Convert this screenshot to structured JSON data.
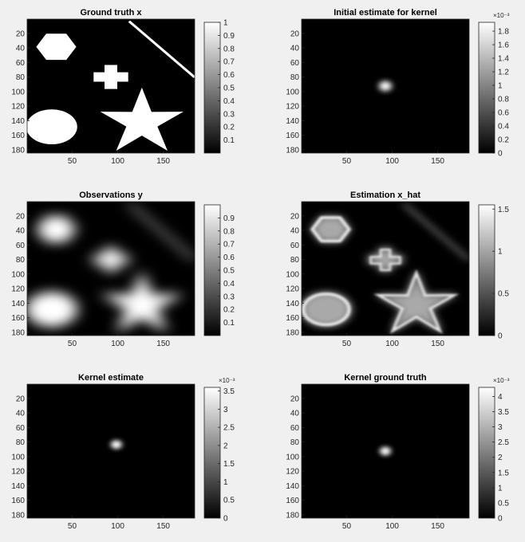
{
  "panels": [
    {
      "title": "Ground truth x",
      "image": "ground-truth",
      "x_ticks": [
        "50",
        "100",
        "150"
      ],
      "x_tick_values": [
        50,
        100,
        150
      ],
      "y_ticks": [
        "20",
        "40",
        "60",
        "80",
        "100",
        "120",
        "140",
        "160",
        "180"
      ],
      "y_tick_values": [
        20,
        40,
        60,
        80,
        100,
        120,
        140,
        160,
        180
      ],
      "colorbar": {
        "ticks": [
          "0.1",
          "0.2",
          "0.3",
          "0.4",
          "0.5",
          "0.6",
          "0.7",
          "0.8",
          "0.9",
          "1"
        ],
        "tick_values": [
          0.1,
          0.2,
          0.3,
          0.4,
          0.5,
          0.6,
          0.7,
          0.8,
          0.9,
          1.0
        ],
        "range": [
          0,
          1
        ],
        "exponent": ""
      }
    },
    {
      "title": "Initial estimate for kernel",
      "image": "kernel-initial",
      "x_ticks": [
        "50",
        "100",
        "150"
      ],
      "x_tick_values": [
        50,
        100,
        150
      ],
      "y_ticks": [
        "20",
        "40",
        "60",
        "80",
        "100",
        "120",
        "140",
        "160",
        "180"
      ],
      "y_tick_values": [
        20,
        40,
        60,
        80,
        100,
        120,
        140,
        160,
        180
      ],
      "colorbar": {
        "ticks": [
          "0",
          "0.2",
          "0.4",
          "0.6",
          "0.8",
          "1",
          "1.2",
          "1.4",
          "1.6",
          "1.8"
        ],
        "tick_values": [
          0,
          0.2,
          0.4,
          0.6,
          0.8,
          1.0,
          1.2,
          1.4,
          1.6,
          1.8
        ],
        "range": [
          0,
          1.93
        ],
        "exponent": "×10⁻³"
      }
    },
    {
      "title": "Observations y",
      "image": "observations",
      "x_ticks": [
        "50",
        "100",
        "150"
      ],
      "x_tick_values": [
        50,
        100,
        150
      ],
      "y_ticks": [
        "20",
        "40",
        "60",
        "80",
        "100",
        "120",
        "140",
        "160",
        "180"
      ],
      "y_tick_values": [
        20,
        40,
        60,
        80,
        100,
        120,
        140,
        160,
        180
      ],
      "colorbar": {
        "ticks": [
          "0.1",
          "0.2",
          "0.3",
          "0.4",
          "0.5",
          "0.6",
          "0.7",
          "0.8",
          "0.9"
        ],
        "tick_values": [
          0.1,
          0.2,
          0.3,
          0.4,
          0.5,
          0.6,
          0.7,
          0.8,
          0.9
        ],
        "range": [
          0,
          1
        ],
        "exponent": ""
      }
    },
    {
      "title": "Estimation x_hat",
      "image": "estimation",
      "x_ticks": [
        "50",
        "100",
        "150"
      ],
      "x_tick_values": [
        50,
        100,
        150
      ],
      "y_ticks": [
        "20",
        "40",
        "60",
        "80",
        "100",
        "120",
        "140",
        "160",
        "180"
      ],
      "y_tick_values": [
        20,
        40,
        60,
        80,
        100,
        120,
        140,
        160,
        180
      ],
      "colorbar": {
        "ticks": [
          "0",
          "0.5",
          "1",
          "1.5"
        ],
        "tick_values": [
          0,
          0.5,
          1.0,
          1.5
        ],
        "range": [
          0,
          1.55
        ],
        "exponent": ""
      }
    },
    {
      "title": "Kernel estimate",
      "image": "kernel-estimate",
      "x_ticks": [
        "50",
        "100",
        "150"
      ],
      "x_tick_values": [
        50,
        100,
        150
      ],
      "y_ticks": [
        "20",
        "40",
        "60",
        "80",
        "100",
        "120",
        "140",
        "160",
        "180"
      ],
      "y_tick_values": [
        20,
        40,
        60,
        80,
        100,
        120,
        140,
        160,
        180
      ],
      "colorbar": {
        "ticks": [
          "0",
          "0.5",
          "1",
          "1.5",
          "2",
          "2.5",
          "3",
          "3.5"
        ],
        "tick_values": [
          0,
          0.5,
          1.0,
          1.5,
          2.0,
          2.5,
          3.0,
          3.5
        ],
        "range": [
          0,
          3.6
        ],
        "exponent": "×10⁻³"
      }
    },
    {
      "title": "Kernel ground truth",
      "image": "kernel-truth",
      "x_ticks": [
        "50",
        "100",
        "150"
      ],
      "x_tick_values": [
        50,
        100,
        150
      ],
      "y_ticks": [
        "20",
        "40",
        "60",
        "80",
        "100",
        "120",
        "140",
        "160",
        "180"
      ],
      "y_tick_values": [
        20,
        40,
        60,
        80,
        100,
        120,
        140,
        160,
        180
      ],
      "colorbar": {
        "ticks": [
          "0",
          "0.5",
          "1",
          "1.5",
          "2",
          "2.5",
          "3",
          "3.5",
          "4"
        ],
        "tick_values": [
          0,
          0.5,
          1.0,
          1.5,
          2.0,
          2.5,
          3.0,
          3.5,
          4.0
        ],
        "range": [
          0,
          4.3
        ],
        "exponent": "×10⁻³"
      }
    }
  ],
  "chart_data": [
    {
      "type": "heatmap",
      "title": "Ground truth x",
      "xlim": [
        0.5,
        184.5
      ],
      "ylim": [
        0.5,
        184.5
      ],
      "colormap": "gray",
      "clim": [
        0,
        1
      ],
      "shapes": [
        {
          "shape": "hexagon",
          "center": [
            32,
            38
          ],
          "value": 1
        },
        {
          "shape": "cross",
          "center": [
            92,
            77
          ],
          "value": 1
        },
        {
          "shape": "diagonal-line",
          "from": [
            112,
            3
          ],
          "to": [
            184,
            80
          ],
          "value": 1
        },
        {
          "shape": "ellipse",
          "center": [
            27,
            148
          ],
          "value": 1
        },
        {
          "shape": "star",
          "center": [
            126,
            140
          ],
          "value": 1
        }
      ]
    },
    {
      "type": "heatmap",
      "title": "Initial estimate for kernel",
      "xlim": [
        0.5,
        184.5
      ],
      "ylim": [
        0.5,
        184.5
      ],
      "colormap": "gray",
      "clim": [
        0,
        0.00193
      ],
      "peak": {
        "center": [
          92,
          92
        ],
        "value": 0.0019
      }
    },
    {
      "type": "heatmap",
      "title": "Observations y",
      "xlim": [
        0.5,
        184.5
      ],
      "ylim": [
        0.5,
        184.5
      ],
      "colormap": "gray",
      "clim": [
        0,
        1
      ]
    },
    {
      "type": "heatmap",
      "title": "Estimation x_hat",
      "xlim": [
        0.5,
        184.5
      ],
      "ylim": [
        0.5,
        184.5
      ],
      "colormap": "gray",
      "clim": [
        0,
        1.55
      ]
    },
    {
      "type": "heatmap",
      "title": "Kernel estimate",
      "xlim": [
        0.5,
        184.5
      ],
      "ylim": [
        0.5,
        184.5
      ],
      "colormap": "gray",
      "clim": [
        0,
        0.0036
      ],
      "peak": {
        "center": [
          98,
          83
        ],
        "value": 0.0036
      }
    },
    {
      "type": "heatmap",
      "title": "Kernel ground truth",
      "xlim": [
        0.5,
        184.5
      ],
      "ylim": [
        0.5,
        184.5
      ],
      "colormap": "gray",
      "clim": [
        0,
        0.0043
      ],
      "peak": {
        "center": [
          92,
          92
        ],
        "value": 0.0043
      }
    }
  ]
}
